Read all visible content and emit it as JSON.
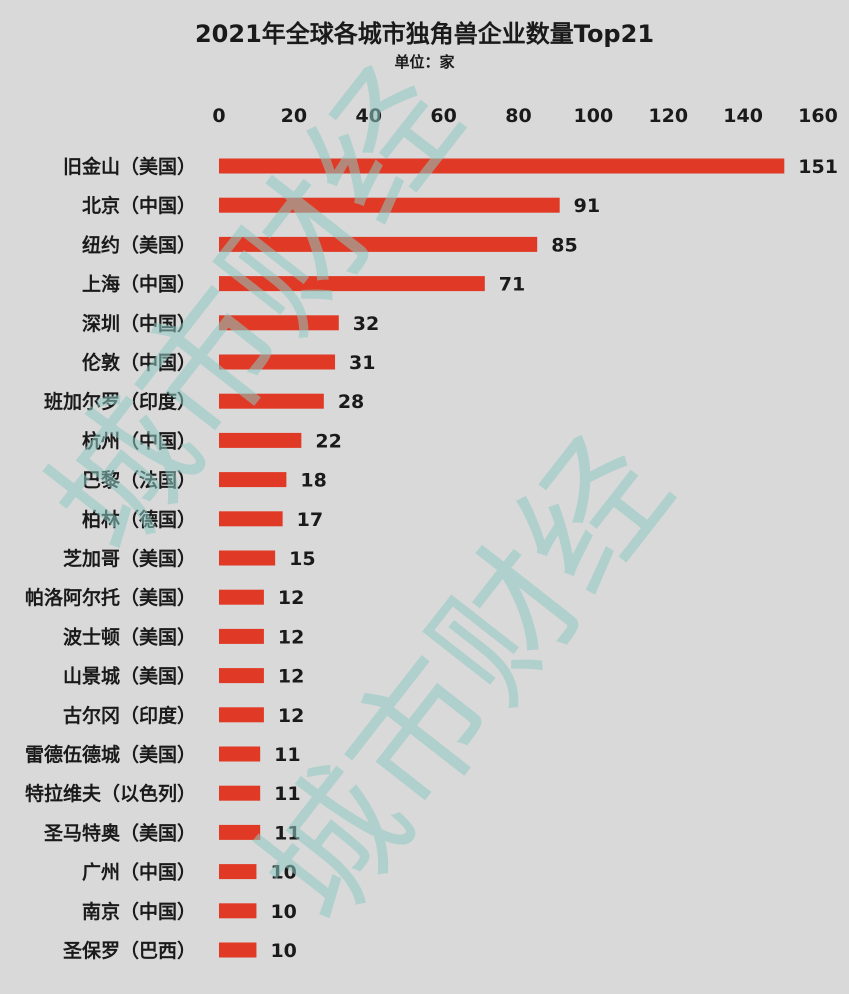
{
  "chart_data": {
    "type": "bar",
    "orientation": "horizontal",
    "title": "2021年全球各城市独角兽企业数量Top21",
    "subtitle": "单位：家",
    "xlim": [
      0,
      160
    ],
    "xticks": [
      0,
      20,
      40,
      60,
      80,
      100,
      120,
      140,
      160
    ],
    "grid": false,
    "bar_color": "#e03a26",
    "categories": [
      "旧金山（美国）",
      "北京（中国）",
      "纽约（美国）",
      "上海（中国）",
      "深圳（中国）",
      "伦敦（中国）",
      "班加尔罗（印度）",
      "杭州（中国）",
      "巴黎（法国）",
      "柏林（德国）",
      "芝加哥（美国）",
      "帕洛阿尔托（美国）",
      "波士顿（美国）",
      "山景城（美国）",
      "古尔冈（印度）",
      "雷德伍德城（美国）",
      "特拉维夫（以色列）",
      "圣马特奥（美国）",
      "广州（中国）",
      "南京（中国）",
      "圣保罗（巴西）"
    ],
    "values": [
      151,
      91,
      85,
      71,
      32,
      31,
      28,
      22,
      18,
      17,
      15,
      12,
      12,
      12,
      12,
      11,
      11,
      11,
      10,
      10,
      10
    ]
  },
  "watermark": {
    "text": "城市财经",
    "color": "#8ec9c2"
  }
}
